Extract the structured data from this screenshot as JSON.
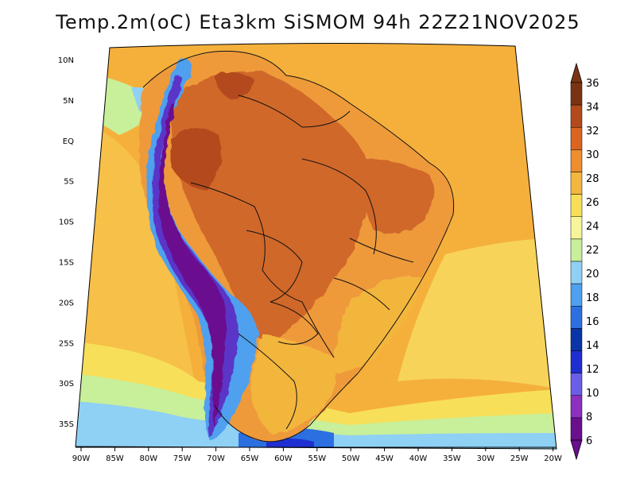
{
  "title": "Temp.2m(oC) Eta3km SiSMOM 94h 22Z21NOV2025",
  "lat_axis": [
    "10N",
    "5N",
    "EQ",
    "5S",
    "10S",
    "15S",
    "20S",
    "25S",
    "30S",
    "35S"
  ],
  "lon_axis": [
    "90W",
    "85W",
    "80W",
    "75W",
    "70W",
    "65W",
    "60W",
    "55W",
    "50W",
    "45W",
    "40W",
    "35W",
    "30W",
    "25W",
    "20W"
  ],
  "colorbar": {
    "labels": [
      "6",
      "8",
      "10",
      "12",
      "14",
      "16",
      "18",
      "20",
      "22",
      "24",
      "26",
      "28",
      "30",
      "32",
      "34",
      "36"
    ],
    "colors": [
      "#6a0f8e",
      "#8d2fbf",
      "#6a5ee6",
      "#1e2fd2",
      "#0a35a8",
      "#2c6fe0",
      "#4fa0ee",
      "#8fd0f5",
      "#c8ef9a",
      "#f6f59a",
      "#f7df5a",
      "#f3b63e",
      "#ee8e2c",
      "#db6420",
      "#b34a1b",
      "#7b3413"
    ]
  },
  "colors": {
    "ocean_warm": "#f5b03c",
    "ocean_mid": "#f7d35a",
    "ocean_cool": "#c8ef9a",
    "land_hot": "#d0682a",
    "land_warm": "#ee9a3a",
    "andes_cold": "#5a36c8"
  }
}
